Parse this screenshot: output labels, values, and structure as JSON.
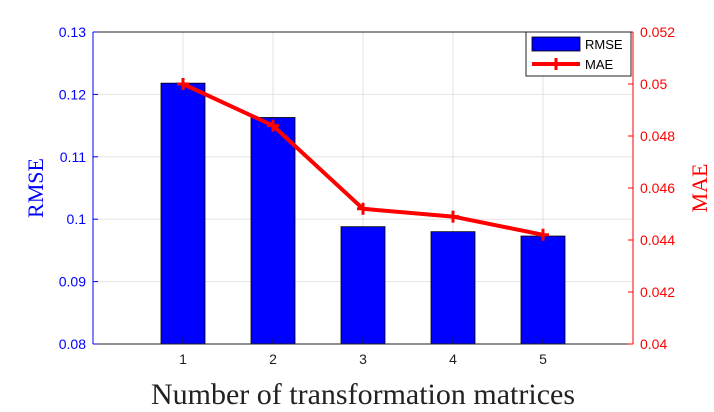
{
  "chart_data": {
    "type": "bar",
    "categories": [
      "1",
      "2",
      "3",
      "4",
      "5"
    ],
    "xlabel": "Number of transformation matrices",
    "grid": true,
    "legend_position": "top-right",
    "series": [
      {
        "name": "RMSE",
        "type": "bar",
        "axis": "left",
        "color": "#0000ff",
        "values": [
          0.1218,
          0.1163,
          0.0988,
          0.098,
          0.0973
        ]
      },
      {
        "name": "MAE",
        "type": "line",
        "axis": "right",
        "color": "#ff0000",
        "values": [
          0.05,
          0.0484,
          0.0452,
          0.0449,
          0.0442
        ]
      }
    ],
    "y_left": {
      "label": "RMSE",
      "lim": [
        0.08,
        0.13
      ],
      "ticks": [
        "0.08",
        "0.09",
        "0.1",
        "0.11",
        "0.12",
        "0.13"
      ]
    },
    "y_right": {
      "label": "MAE",
      "lim": [
        0.04,
        0.052
      ],
      "ticks": [
        "0.04",
        "0.042",
        "0.044",
        "0.046",
        "0.048",
        "0.05",
        "0.052"
      ]
    }
  }
}
